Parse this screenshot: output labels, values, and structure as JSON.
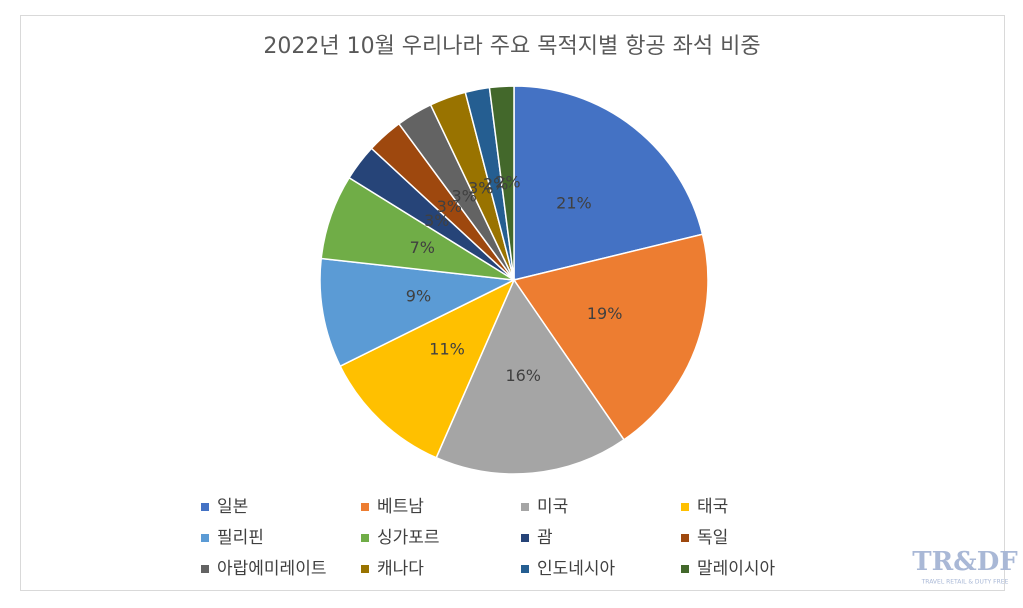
{
  "chart_data": {
    "type": "pie",
    "title": "2022년 10월 우리나라 주요 목적지별 항공 좌석 비중",
    "categories": [
      "일본",
      "베트남",
      "미국",
      "태국",
      "필리핀",
      "싱가포르",
      "괌",
      "독일",
      "아랍에미레이트",
      "캐나다",
      "인도네시아",
      "말레이시아"
    ],
    "values": [
      21,
      19,
      16,
      11,
      9,
      7,
      3,
      3,
      3,
      3,
      2,
      2
    ],
    "value_labels": [
      "21%",
      "19%",
      "16%",
      "11%",
      "9%",
      "7%",
      "3%",
      "3%",
      "3%",
      "3%",
      "2%",
      "2%"
    ],
    "colors": [
      "#4472c4",
      "#ed7d31",
      "#a5a5a5",
      "#ffc000",
      "#5b9bd5",
      "#70ad47",
      "#264478",
      "#9e480e",
      "#636363",
      "#997300",
      "#255e91",
      "#43682b"
    ],
    "legend": "bottom"
  },
  "watermark": {
    "logo": "TR&DF",
    "tagline": "TRAVEL RETAIL & DUTY FREE"
  }
}
